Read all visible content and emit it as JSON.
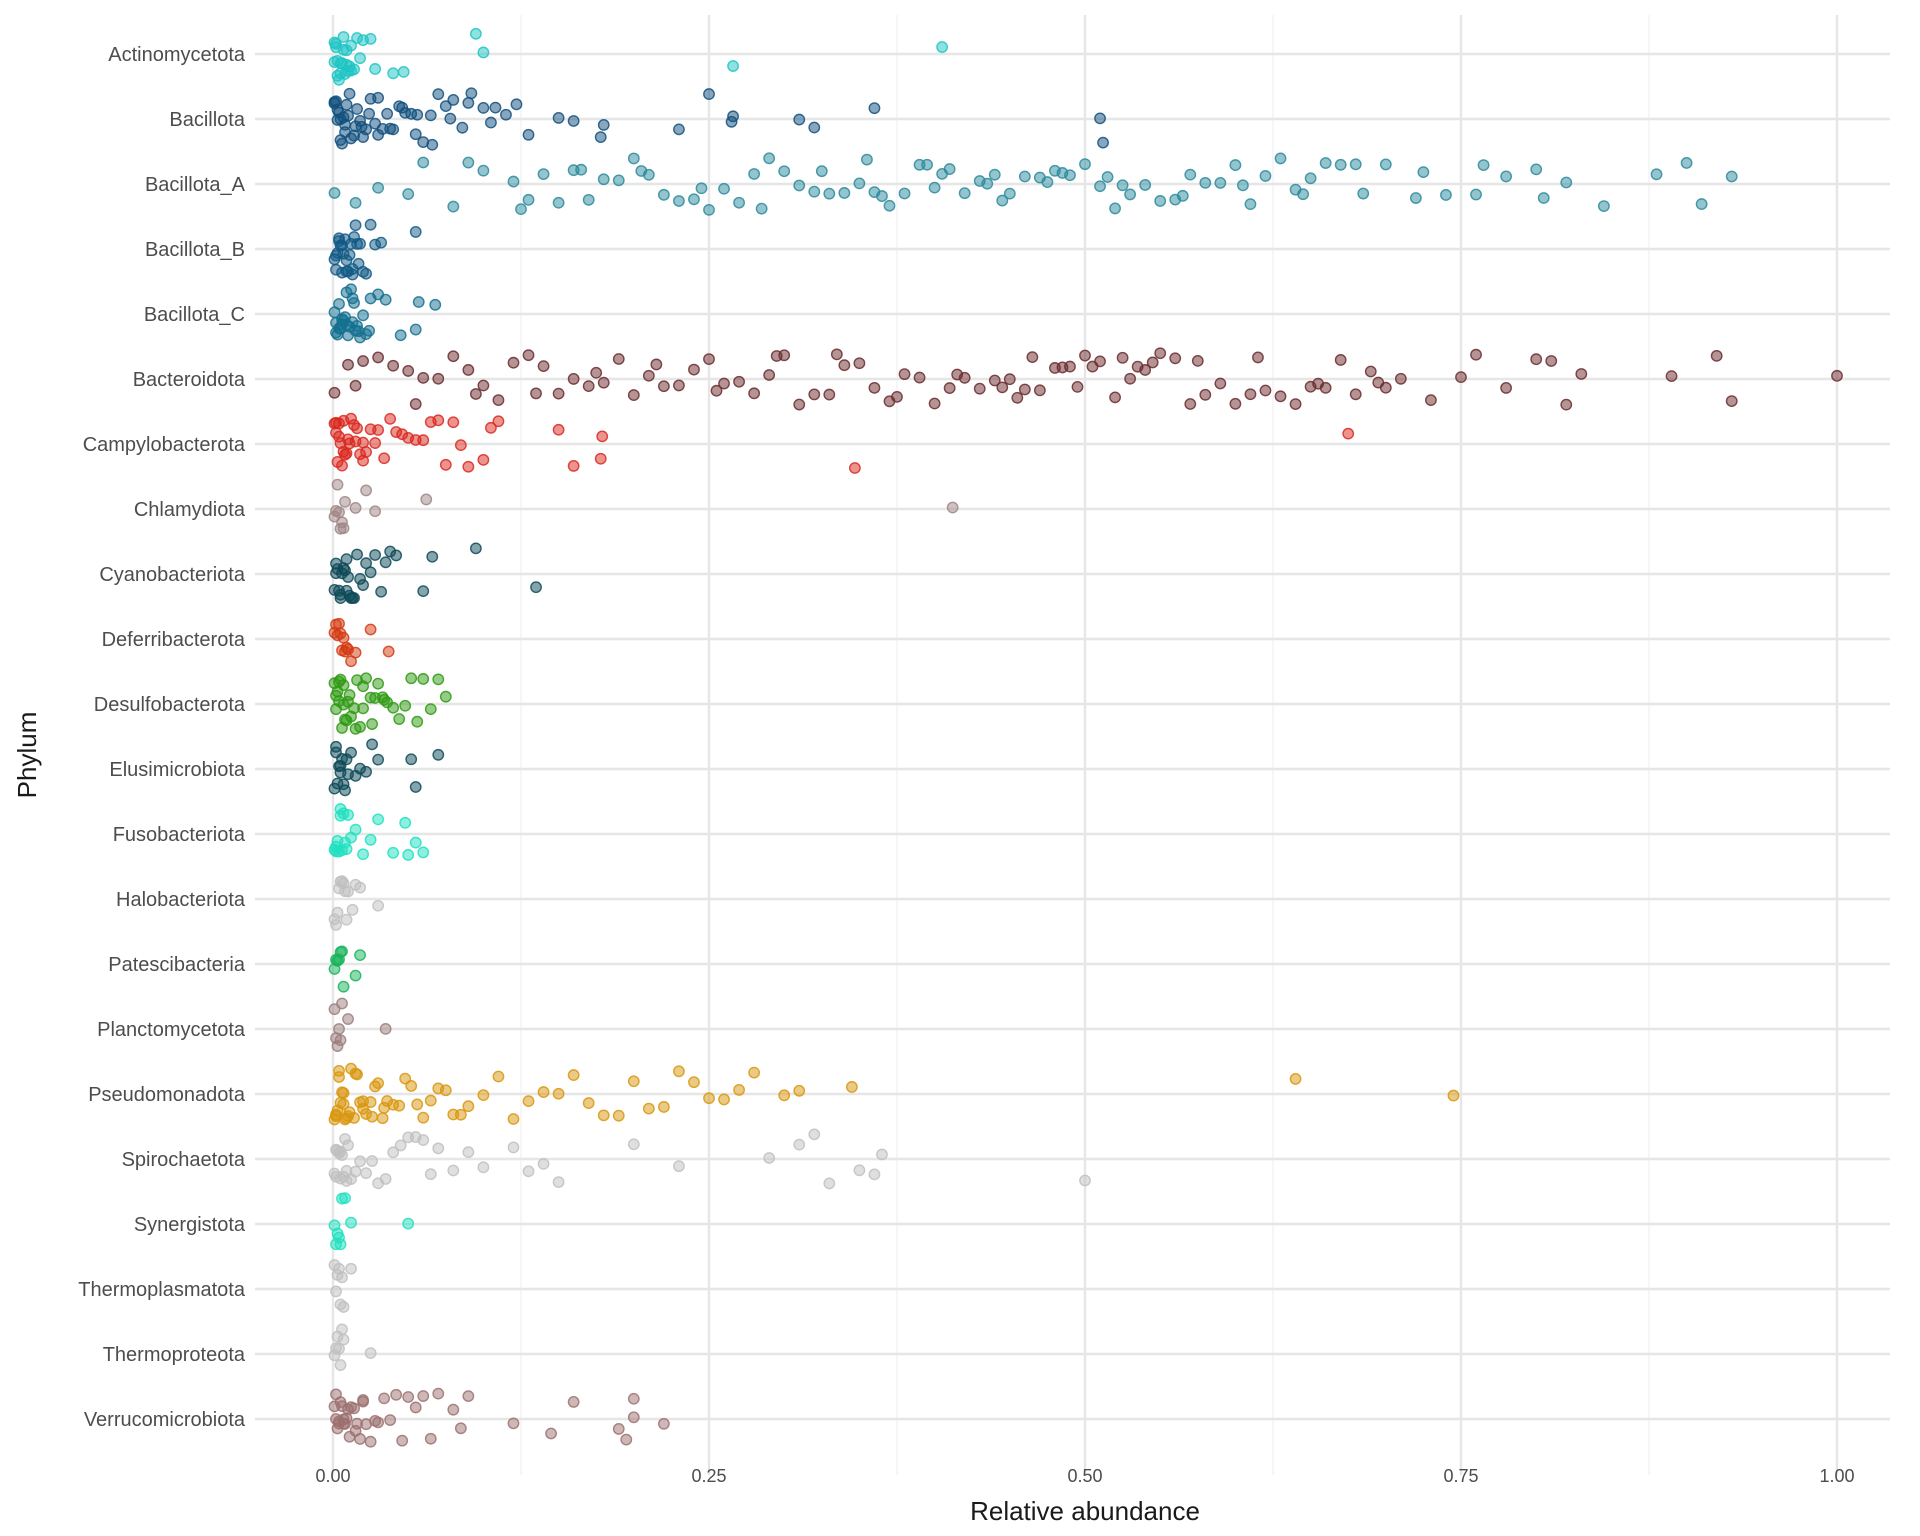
{
  "chart_data": {
    "type": "scatter",
    "jitter": "vertical",
    "xlabel": "Relative abundance",
    "ylabel": "Phylum",
    "xlim": [
      0,
      1
    ],
    "x_ticks": [
      "0.00",
      "0.25",
      "0.50",
      "0.75",
      "1.00"
    ],
    "grid": true,
    "legend": "none",
    "point_opacity": 0.5,
    "categories": [
      "Actinomycetota",
      "Bacillota",
      "Bacillota_A",
      "Bacillota_B",
      "Bacillota_C",
      "Bacteroidota",
      "Campylobacterota",
      "Chlamydiota",
      "Cyanobacteriota",
      "Deferribacterota",
      "Desulfobacterota",
      "Elusimicrobiota",
      "Fusobacteriota",
      "Halobacteriota",
      "Patescibacteria",
      "Planctomycetota",
      "Pseudomonadota",
      "Spirochaetota",
      "Synergistota",
      "Thermoplasmatota",
      "Thermoproteota",
      "Verrucomicrobiota"
    ],
    "series": [
      {
        "category": "Actinomycetota",
        "color": "#1fc4c4",
        "points": [
          0.001,
          0.002,
          0.003,
          0.004,
          0.005,
          0.006,
          0.007,
          0.008,
          0.009,
          0.01,
          0.011,
          0.012,
          0.014,
          0.016,
          0.018,
          0.02,
          0.025,
          0.028,
          0.04,
          0.047,
          0.095,
          0.1,
          0.266,
          0.405,
          0.001,
          0.002,
          0.003,
          0.005,
          0.007,
          0.009,
          0.012
        ]
      },
      {
        "category": "Bacillota",
        "color": "#11507e",
        "points": [
          0.001,
          0.002,
          0.003,
          0.004,
          0.005,
          0.006,
          0.007,
          0.008,
          0.009,
          0.01,
          0.012,
          0.014,
          0.016,
          0.018,
          0.02,
          0.022,
          0.025,
          0.028,
          0.03,
          0.033,
          0.036,
          0.04,
          0.044,
          0.048,
          0.052,
          0.056,
          0.06,
          0.065,
          0.07,
          0.075,
          0.08,
          0.086,
          0.092,
          0.1,
          0.108,
          0.115,
          0.122,
          0.13,
          0.15,
          0.16,
          0.178,
          0.18,
          0.23,
          0.25,
          0.265,
          0.266,
          0.31,
          0.32,
          0.36,
          0.51,
          0.512,
          0.001,
          0.003,
          0.005,
          0.008,
          0.011,
          0.015,
          0.019,
          0.024,
          0.03,
          0.038,
          0.046,
          0.055,
          0.066,
          0.078,
          0.09,
          0.105
        ]
      },
      {
        "category": "Bacillota_A",
        "color": "#2a8a9c",
        "points": [
          0.001,
          0.015,
          0.03,
          0.05,
          0.06,
          0.08,
          0.09,
          0.1,
          0.12,
          0.13,
          0.14,
          0.15,
          0.16,
          0.17,
          0.18,
          0.19,
          0.2,
          0.21,
          0.22,
          0.23,
          0.24,
          0.25,
          0.26,
          0.27,
          0.28,
          0.29,
          0.3,
          0.31,
          0.32,
          0.33,
          0.34,
          0.35,
          0.36,
          0.37,
          0.38,
          0.39,
          0.4,
          0.41,
          0.42,
          0.43,
          0.44,
          0.45,
          0.46,
          0.47,
          0.48,
          0.49,
          0.5,
          0.51,
          0.52,
          0.53,
          0.54,
          0.55,
          0.56,
          0.57,
          0.58,
          0.59,
          0.6,
          0.61,
          0.62,
          0.63,
          0.64,
          0.65,
          0.66,
          0.67,
          0.68,
          0.7,
          0.72,
          0.74,
          0.76,
          0.78,
          0.8,
          0.82,
          0.845,
          0.88,
          0.9,
          0.91,
          0.93,
          0.125,
          0.165,
          0.205,
          0.245,
          0.285,
          0.325,
          0.365,
          0.405,
          0.445,
          0.485,
          0.525,
          0.565,
          0.605,
          0.645,
          0.685,
          0.725,
          0.765,
          0.805,
          0.355,
          0.395,
          0.435,
          0.475,
          0.515
        ]
      },
      {
        "category": "Bacillota_B",
        "color": "#125a85",
        "points": [
          0.001,
          0.002,
          0.003,
          0.004,
          0.005,
          0.006,
          0.007,
          0.008,
          0.009,
          0.01,
          0.011,
          0.012,
          0.013,
          0.014,
          0.015,
          0.016,
          0.018,
          0.02,
          0.022,
          0.025,
          0.028,
          0.032,
          0.055,
          0.002,
          0.004,
          0.006,
          0.009,
          0.013,
          0.017
        ]
      },
      {
        "category": "Bacillota_C",
        "color": "#14708f",
        "points": [
          0.001,
          0.002,
          0.003,
          0.004,
          0.005,
          0.006,
          0.007,
          0.008,
          0.009,
          0.01,
          0.011,
          0.012,
          0.013,
          0.014,
          0.015,
          0.016,
          0.018,
          0.02,
          0.022,
          0.025,
          0.03,
          0.035,
          0.045,
          0.055,
          0.057,
          0.068,
          0.002,
          0.004,
          0.006,
          0.009,
          0.013,
          0.017,
          0.024
        ]
      },
      {
        "category": "Bacteroidota",
        "color": "#6b2a2e",
        "points": [
          0.001,
          0.01,
          0.02,
          0.03,
          0.04,
          0.05,
          0.06,
          0.07,
          0.08,
          0.09,
          0.1,
          0.11,
          0.12,
          0.13,
          0.14,
          0.15,
          0.16,
          0.17,
          0.18,
          0.19,
          0.2,
          0.21,
          0.22,
          0.23,
          0.24,
          0.25,
          0.26,
          0.27,
          0.28,
          0.29,
          0.3,
          0.31,
          0.32,
          0.33,
          0.34,
          0.35,
          0.36,
          0.37,
          0.38,
          0.39,
          0.4,
          0.41,
          0.42,
          0.43,
          0.44,
          0.45,
          0.46,
          0.47,
          0.48,
          0.49,
          0.5,
          0.51,
          0.52,
          0.53,
          0.54,
          0.55,
          0.56,
          0.57,
          0.58,
          0.59,
          0.6,
          0.61,
          0.62,
          0.63,
          0.64,
          0.65,
          0.66,
          0.67,
          0.68,
          0.69,
          0.7,
          0.71,
          0.73,
          0.75,
          0.76,
          0.78,
          0.8,
          0.81,
          0.82,
          0.83,
          0.89,
          0.92,
          0.93,
          1.0,
          0.015,
          0.055,
          0.095,
          0.135,
          0.175,
          0.215,
          0.255,
          0.295,
          0.335,
          0.375,
          0.415,
          0.455,
          0.495,
          0.535,
          0.575,
          0.615,
          0.655,
          0.695,
          0.445,
          0.465,
          0.485,
          0.505,
          0.525,
          0.545
        ]
      },
      {
        "category": "Campylobacterota",
        "color": "#d9281e",
        "points": [
          0.001,
          0.002,
          0.003,
          0.004,
          0.005,
          0.006,
          0.007,
          0.008,
          0.009,
          0.01,
          0.012,
          0.014,
          0.016,
          0.018,
          0.02,
          0.022,
          0.025,
          0.028,
          0.03,
          0.034,
          0.038,
          0.042,
          0.046,
          0.05,
          0.055,
          0.06,
          0.065,
          0.07,
          0.075,
          0.08,
          0.085,
          0.09,
          0.1,
          0.105,
          0.11,
          0.15,
          0.16,
          0.178,
          0.179,
          0.347,
          0.675,
          0.002,
          0.004,
          0.007,
          0.011,
          0.015,
          0.02
        ]
      },
      {
        "category": "Chlamydiota",
        "color": "#a08585",
        "points": [
          0.001,
          0.002,
          0.003,
          0.004,
          0.005,
          0.006,
          0.007,
          0.008,
          0.015,
          0.022,
          0.028,
          0.062,
          0.412
        ]
      },
      {
        "category": "Cyanobacteriota",
        "color": "#0d4a58",
        "points": [
          0.001,
          0.002,
          0.003,
          0.004,
          0.005,
          0.006,
          0.007,
          0.008,
          0.009,
          0.01,
          0.011,
          0.012,
          0.014,
          0.016,
          0.018,
          0.02,
          0.022,
          0.025,
          0.028,
          0.032,
          0.035,
          0.038,
          0.042,
          0.06,
          0.066,
          0.095,
          0.135,
          0.002,
          0.005,
          0.009,
          0.013
        ]
      },
      {
        "category": "Deferribacterota",
        "color": "#d43a12",
        "points": [
          0.001,
          0.002,
          0.003,
          0.004,
          0.005,
          0.006,
          0.007,
          0.008,
          0.009,
          0.01,
          0.012,
          0.015,
          0.025,
          0.037
        ]
      },
      {
        "category": "Desulfobacterota",
        "color": "#2e9a12",
        "points": [
          0.001,
          0.002,
          0.003,
          0.004,
          0.005,
          0.006,
          0.007,
          0.008,
          0.009,
          0.01,
          0.012,
          0.014,
          0.016,
          0.018,
          0.02,
          0.022,
          0.025,
          0.028,
          0.03,
          0.033,
          0.036,
          0.04,
          0.044,
          0.048,
          0.052,
          0.056,
          0.06,
          0.065,
          0.07,
          0.075,
          0.002,
          0.004,
          0.007,
          0.011,
          0.015,
          0.02,
          0.026,
          0.034
        ]
      },
      {
        "category": "Elusimicrobiota",
        "color": "#0d4a58",
        "points": [
          0.001,
          0.002,
          0.003,
          0.004,
          0.005,
          0.006,
          0.007,
          0.008,
          0.009,
          0.01,
          0.012,
          0.015,
          0.018,
          0.022,
          0.026,
          0.03,
          0.052,
          0.055,
          0.07,
          0.002,
          0.005
        ]
      },
      {
        "category": "Fusobacteriota",
        "color": "#1fe0c0",
        "points": [
          0.001,
          0.002,
          0.003,
          0.004,
          0.005,
          0.006,
          0.007,
          0.008,
          0.009,
          0.01,
          0.012,
          0.015,
          0.02,
          0.025,
          0.03,
          0.04,
          0.048,
          0.05,
          0.055,
          0.06,
          0.002,
          0.005
        ]
      },
      {
        "category": "Halobacteriota",
        "color": "#c0c0c0",
        "points": [
          0.001,
          0.002,
          0.003,
          0.004,
          0.005,
          0.006,
          0.007,
          0.008,
          0.009,
          0.01,
          0.013,
          0.015,
          0.018,
          0.03
        ]
      },
      {
        "category": "Patescibacteria",
        "color": "#17b35a",
        "points": [
          0.001,
          0.002,
          0.003,
          0.004,
          0.005,
          0.006,
          0.007,
          0.015,
          0.018
        ]
      },
      {
        "category": "Planctomycetota",
        "color": "#9c7d7d",
        "points": [
          0.001,
          0.002,
          0.003,
          0.004,
          0.005,
          0.006,
          0.01,
          0.035
        ]
      },
      {
        "category": "Pseudomonadota",
        "color": "#d8960e",
        "points": [
          0.001,
          0.002,
          0.003,
          0.004,
          0.005,
          0.006,
          0.007,
          0.008,
          0.009,
          0.01,
          0.012,
          0.014,
          0.016,
          0.018,
          0.02,
          0.022,
          0.025,
          0.028,
          0.03,
          0.033,
          0.036,
          0.04,
          0.044,
          0.048,
          0.052,
          0.056,
          0.06,
          0.065,
          0.07,
          0.075,
          0.08,
          0.085,
          0.09,
          0.1,
          0.11,
          0.12,
          0.13,
          0.14,
          0.15,
          0.16,
          0.17,
          0.18,
          0.19,
          0.2,
          0.21,
          0.22,
          0.23,
          0.24,
          0.25,
          0.26,
          0.27,
          0.28,
          0.3,
          0.31,
          0.345,
          0.64,
          0.745,
          0.002,
          0.004,
          0.007,
          0.011,
          0.015,
          0.02,
          0.026,
          0.034
        ]
      },
      {
        "category": "Spirochaetota",
        "color": "#c0c0c0",
        "points": [
          0.001,
          0.002,
          0.003,
          0.004,
          0.005,
          0.006,
          0.007,
          0.008,
          0.009,
          0.01,
          0.012,
          0.015,
          0.018,
          0.022,
          0.026,
          0.03,
          0.035,
          0.04,
          0.045,
          0.05,
          0.055,
          0.06,
          0.065,
          0.07,
          0.08,
          0.09,
          0.1,
          0.12,
          0.13,
          0.14,
          0.15,
          0.2,
          0.23,
          0.29,
          0.31,
          0.32,
          0.33,
          0.35,
          0.36,
          0.365,
          0.5,
          0.002,
          0.005,
          0.009
        ]
      },
      {
        "category": "Synergistota",
        "color": "#1fe0c0",
        "points": [
          0.001,
          0.002,
          0.003,
          0.004,
          0.005,
          0.006,
          0.008,
          0.012,
          0.05
        ]
      },
      {
        "category": "Thermoplasmatota",
        "color": "#c0c0c0",
        "points": [
          0.001,
          0.002,
          0.003,
          0.004,
          0.005,
          0.006,
          0.007,
          0.012
        ]
      },
      {
        "category": "Thermoproteota",
        "color": "#c0c0c0",
        "points": [
          0.001,
          0.002,
          0.003,
          0.004,
          0.005,
          0.006,
          0.007,
          0.025
        ]
      },
      {
        "category": "Verrucomicrobiota",
        "color": "#9c7070",
        "points": [
          0.001,
          0.002,
          0.003,
          0.004,
          0.005,
          0.006,
          0.007,
          0.008,
          0.009,
          0.01,
          0.012,
          0.014,
          0.016,
          0.018,
          0.02,
          0.022,
          0.025,
          0.028,
          0.03,
          0.034,
          0.038,
          0.042,
          0.046,
          0.05,
          0.055,
          0.06,
          0.065,
          0.07,
          0.08,
          0.085,
          0.09,
          0.12,
          0.145,
          0.16,
          0.19,
          0.195,
          0.2,
          0.2,
          0.22,
          0.002,
          0.004,
          0.007,
          0.011,
          0.015,
          0.02
        ]
      }
    ]
  }
}
